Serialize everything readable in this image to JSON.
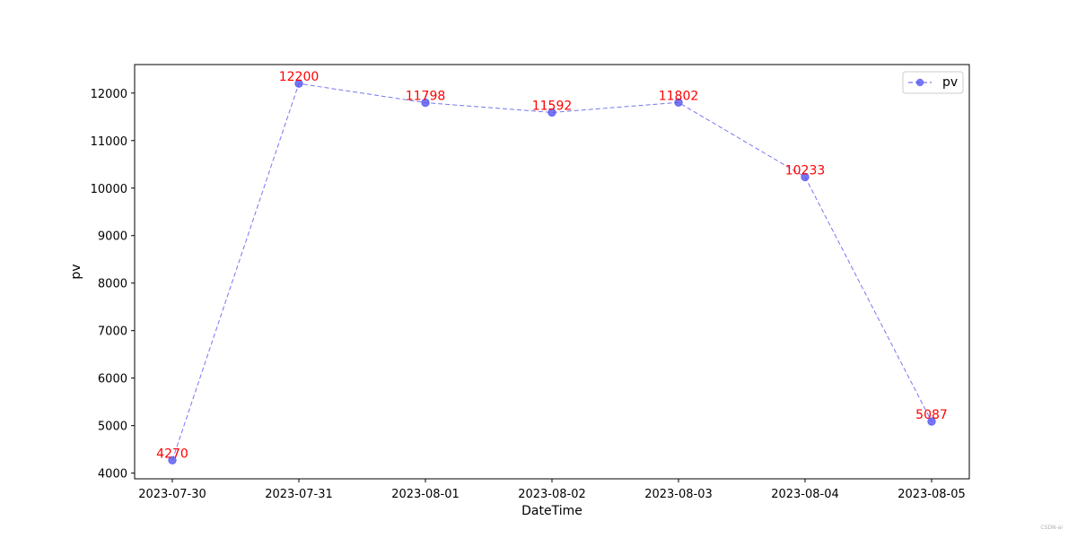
{
  "chart_data": {
    "type": "line",
    "xlabel": "DateTime",
    "ylabel": "pv",
    "x": [
      "2023-07-30",
      "2023-07-31",
      "2023-08-01",
      "2023-08-02",
      "2023-08-03",
      "2023-08-04",
      "2023-08-05"
    ],
    "series": [
      {
        "name": "pv",
        "values": [
          4270,
          12200,
          11798,
          11592,
          11802,
          10233,
          5087
        ],
        "color": "#5555ee",
        "line_style": "dashed",
        "marker": "circle",
        "data_labels": [
          "4270",
          "12200",
          "11798",
          "11592",
          "11802",
          "10233",
          "5087"
        ]
      }
    ],
    "yticks": [
      4000,
      5000,
      6000,
      7000,
      8000,
      9000,
      10000,
      11000,
      12000
    ],
    "ylim": [
      3880,
      12600
    ],
    "grid": false,
    "legend_position": "top-right",
    "label_color": "#ff0000"
  },
  "watermark": "CSDN-ai"
}
